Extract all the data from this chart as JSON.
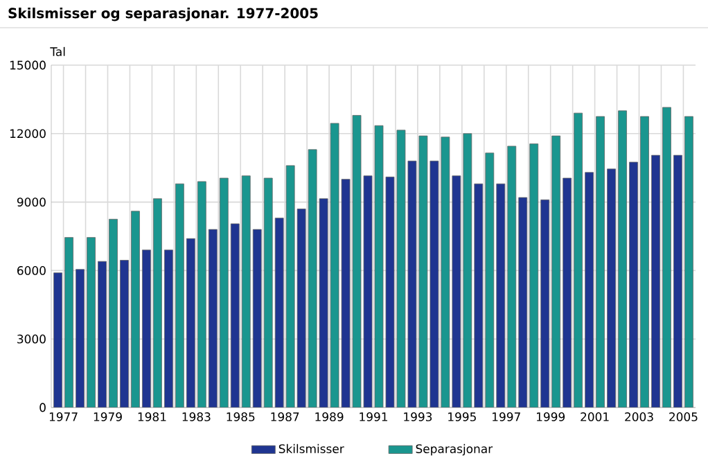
{
  "chart_data": {
    "type": "bar",
    "title": "Skilsmisser og separasjonar. 1977-2005",
    "ylabel": "Tal",
    "categories": [
      "1977",
      null,
      "1979",
      null,
      "1981",
      null,
      "1983",
      null,
      "1985",
      null,
      "1987",
      null,
      "1989",
      null,
      "1991",
      null,
      "1993",
      null,
      "1995",
      null,
      "1997",
      null,
      "1999",
      null,
      "2001",
      null,
      "2003",
      null,
      "2005"
    ],
    "series": [
      {
        "name": "Skilsmisser",
        "color": "#1f3591",
        "values": [
          5900,
          6050,
          6400,
          6450,
          6900,
          6900,
          7400,
          7800,
          8050,
          7800,
          8300,
          8700,
          9150,
          10000,
          10150,
          10100,
          10800,
          10800,
          10150,
          9800,
          9800,
          9200,
          9100,
          10050,
          10300,
          10450,
          10750,
          11050,
          11050
        ]
      },
      {
        "name": "Separasjonar",
        "color": "#1a968f",
        "values": [
          7450,
          7450,
          8250,
          8600,
          9150,
          9800,
          9900,
          10050,
          10150,
          10050,
          10600,
          11300,
          12450,
          12800,
          12350,
          12150,
          11900,
          11850,
          12000,
          11150,
          11450,
          11550,
          11900,
          12900,
          12750,
          13000,
          12750,
          13150,
          12750
        ]
      }
    ],
    "ylim": [
      0,
      15000
    ],
    "yticks": [
      0,
      3000,
      6000,
      9000,
      12000,
      15000
    ],
    "grid": true,
    "legend": "bottom"
  }
}
